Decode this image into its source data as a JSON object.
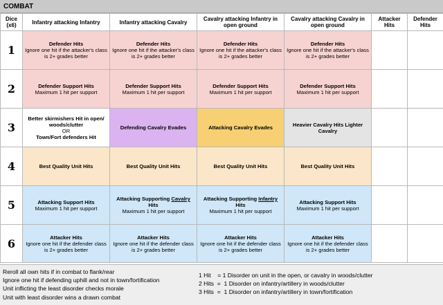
{
  "title": "COMBAT",
  "headers": {
    "dice": "Dice (x6)",
    "col1": "Infantry attacking Infantry",
    "col2": "Infantry attacking Cavalry",
    "col3": "Cavalry attacking Infantry in open ground",
    "col4": "Cavalry attacking Cavalry in open ground",
    "col5": "Attacker Hits",
    "col6": "Defender Hits"
  },
  "rows": [
    {
      "dice": "1",
      "c1": {
        "title": "Defender Hits",
        "text": "Ignore one hit if the attacker's class is 2+ grades better"
      },
      "c2": {
        "title": "Defender Hits",
        "text": "Ignore one hit if the attacker's class is 2+ grades better"
      },
      "c3": {
        "title": "Defender Hits",
        "text": "Ignore one hit if the attacker's class is 2+ grades better"
      },
      "c4": {
        "title": "Defender Hits",
        "text": "Ignore one hit if the attacker's class is 2+ grades better"
      }
    },
    {
      "dice": "2",
      "c1": {
        "title": "Defender Support Hits",
        "text": "Maximum 1 hit per support"
      },
      "c2": {
        "title": "Defender Support Hits",
        "text": "Maximum 1 hit per support"
      },
      "c3": {
        "title": "Defender Support Hits",
        "text": "Maximum 1 hit per support"
      },
      "c4": {
        "title": "Defender Support Hits",
        "text": "Maximum 1 hit per support"
      }
    },
    {
      "dice": "3",
      "c1": {
        "title": "Better skirmishers Hit in open/ woods/clutter",
        "or": "OR",
        "text2": "Town/Fort defenders Hit"
      },
      "c2": {
        "title": "Defending Cavalry Evades"
      },
      "c3": {
        "title": "Attacking Cavalry Evades"
      },
      "c4": {
        "title": "Heavier Cavalry Hits Lighter Cavalry"
      }
    },
    {
      "dice": "4",
      "c1": {
        "title": "Best Quality Unit Hits"
      },
      "c2": {
        "title": "Best Quality Unit Hits"
      },
      "c3": {
        "title": "Best Quality Unit Hits"
      },
      "c4": {
        "title": "Best Quality Unit Hits"
      }
    },
    {
      "dice": "5",
      "c1": {
        "title": "Attacking Support Hits",
        "text": "Maximum 1 hit per support"
      },
      "c2": {
        "title_a": "Attacking Supporting ",
        "title_u": "Cavalry",
        "title_b": " Hits",
        "text": "Maximum 1 hit per support"
      },
      "c3": {
        "title_a": "Attacking Supporting ",
        "title_u": "Infantry",
        "title_b": " Hits",
        "text": "Maximum 1 hit per support"
      },
      "c4": {
        "title": "Attacking Support Hits",
        "text": "Maximum 1 hit per support"
      }
    },
    {
      "dice": "6",
      "c1": {
        "title": "Attacker Hits",
        "text": "Ignore one hit if the defender class is 2+ grades better"
      },
      "c2": {
        "title": "Attacker Hits",
        "text": "Ignore one hit if the defender class is 2+ grades better"
      },
      "c3": {
        "title": "Attacker Hits",
        "text": "Ignore one hit if the defender class is 2+ grades better"
      },
      "c4": {
        "title": "Attacker Hits",
        "text": "Ignore one hit if the defender class is 2+ grades better"
      }
    }
  ],
  "footer": {
    "left": [
      "Reroll all own hits if in combat to flank/rear",
      "Ignore one hit if defending uphill and not in town/fortification",
      "Unit inflicting the least disorder checks morale",
      "Unit with least disorder wins a drawn combat"
    ],
    "right": [
      "1 Hit    = 1 Disorder on unit in the open, or cavalry in woods/clutter",
      "2 Hits  =  1 Disorder on infantry/artillery in woods/clutter",
      "3 Hits  =  1 Disorder on infantry/artillery in town/fortification"
    ]
  },
  "colors": {
    "pink": "#f6d3d1",
    "purple": "#dbb3f1",
    "yellow": "#f6d073",
    "grey": "#e4e4e4",
    "peach": "#fbe6c9",
    "blue": "#cfe7f8",
    "title_bar": "#c9c9c9",
    "footer": "#eeeeee"
  }
}
